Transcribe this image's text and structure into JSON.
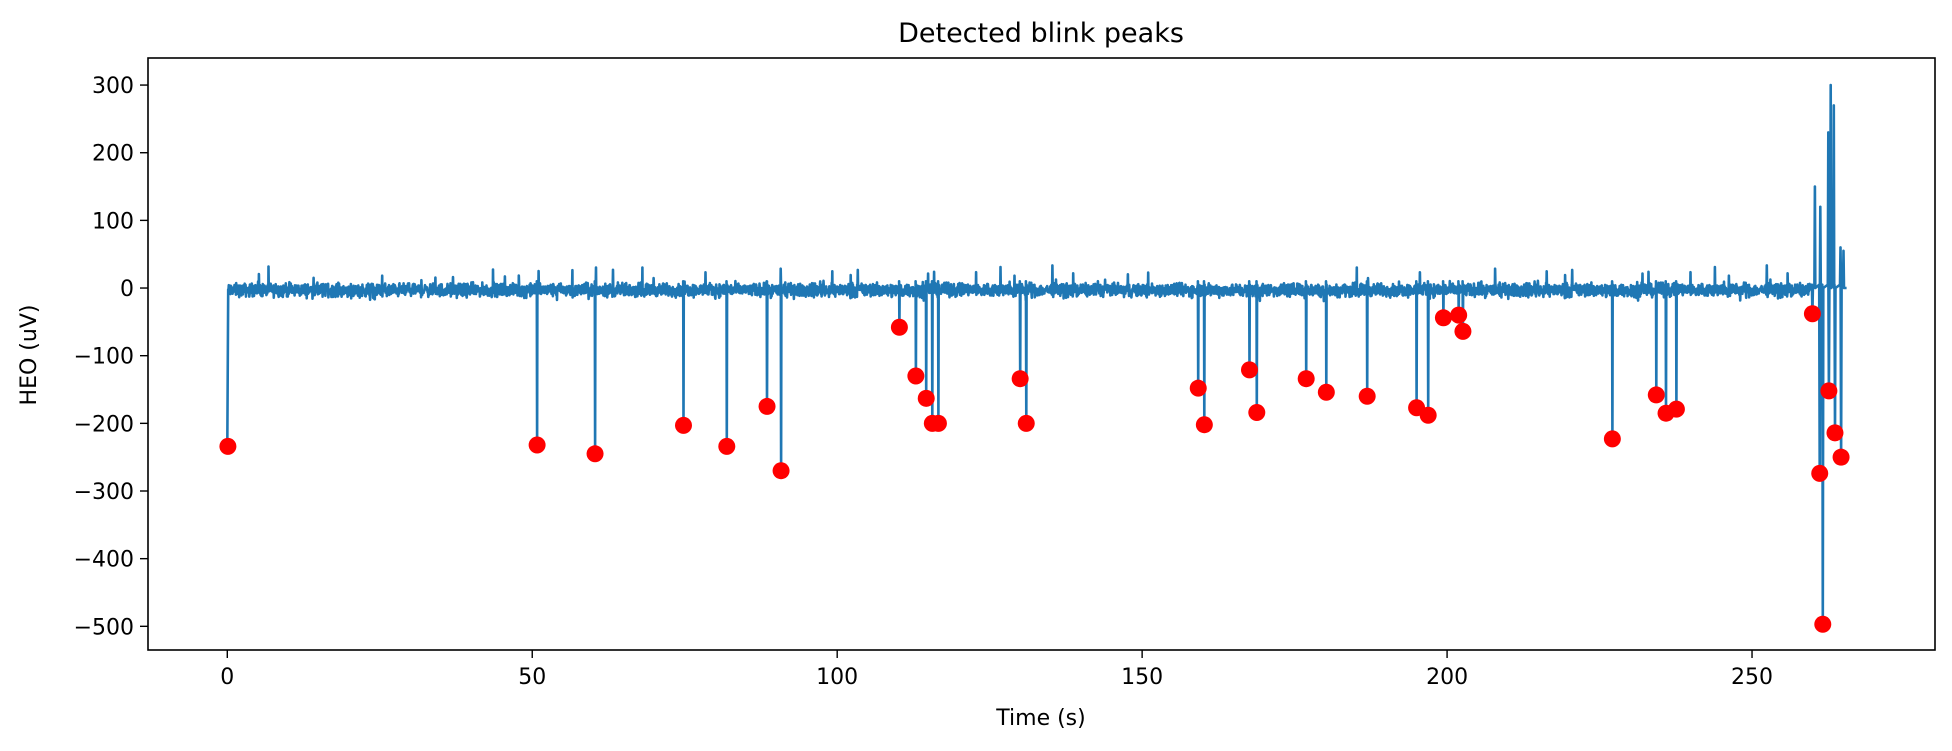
{
  "chart_data": {
    "type": "line",
    "title": "Detected blink peaks",
    "xlabel": "Time (s)",
    "ylabel": "HEO (uV)",
    "xlim": [
      -13,
      280
    ],
    "ylim": [
      -535,
      340
    ],
    "x_ticks": [
      0,
      50,
      100,
      150,
      200,
      250
    ],
    "x_tick_labels": [
      "0",
      "50",
      "100",
      "150",
      "200",
      "250"
    ],
    "y_ticks": [
      300,
      200,
      100,
      0,
      -100,
      -200,
      -300,
      -400,
      -500
    ],
    "y_tick_labels": [
      "300",
      "200",
      "100",
      "0",
      "−100",
      "−200",
      "−300",
      "−400",
      "−500"
    ],
    "grid": false,
    "series": [
      {
        "color": "#1f77b4",
        "baseline_noise_range": [
          -20,
          25
        ],
        "burst": {
          "start": 259.5,
          "end": 265.5,
          "spikes": [
            {
              "x": 260.3,
              "y": 150
            },
            {
              "x": 261.2,
              "y": 120
            },
            {
              "x": 262.5,
              "y": 230
            },
            {
              "x": 262.9,
              "y": 300
            },
            {
              "x": 263.4,
              "y": 270
            },
            {
              "x": 264.5,
              "y": 60
            },
            {
              "x": 265.0,
              "y": 55
            }
          ]
        }
      },
      {
        "color": "#ff0000",
        "marker": "circle",
        "points": [
          {
            "x": 0.1,
            "y": -234
          },
          {
            "x": 50.8,
            "y": -232
          },
          {
            "x": 60.3,
            "y": -245
          },
          {
            "x": 74.8,
            "y": -203
          },
          {
            "x": 81.9,
            "y": -234
          },
          {
            "x": 88.5,
            "y": -175
          },
          {
            "x": 90.8,
            "y": -270
          },
          {
            "x": 110.2,
            "y": -58
          },
          {
            "x": 112.9,
            "y": -130
          },
          {
            "x": 114.6,
            "y": -163
          },
          {
            "x": 115.6,
            "y": -200
          },
          {
            "x": 116.6,
            "y": -200
          },
          {
            "x": 130.0,
            "y": -134
          },
          {
            "x": 131.0,
            "y": -200
          },
          {
            "x": 159.2,
            "y": -148
          },
          {
            "x": 160.2,
            "y": -202
          },
          {
            "x": 167.6,
            "y": -121
          },
          {
            "x": 168.8,
            "y": -184
          },
          {
            "x": 176.9,
            "y": -134
          },
          {
            "x": 180.2,
            "y": -154
          },
          {
            "x": 186.9,
            "y": -160
          },
          {
            "x": 195.0,
            "y": -177
          },
          {
            "x": 196.9,
            "y": -188
          },
          {
            "x": 199.4,
            "y": -44
          },
          {
            "x": 201.9,
            "y": -40
          },
          {
            "x": 202.6,
            "y": -64
          },
          {
            "x": 227.1,
            "y": -223
          },
          {
            "x": 234.3,
            "y": -158
          },
          {
            "x": 235.9,
            "y": -185
          },
          {
            "x": 237.6,
            "y": -179
          },
          {
            "x": 259.9,
            "y": -38
          },
          {
            "x": 261.1,
            "y": -274
          },
          {
            "x": 261.6,
            "y": -497
          },
          {
            "x": 262.6,
            "y": -152
          },
          {
            "x": 263.6,
            "y": -214
          },
          {
            "x": 264.6,
            "y": -250
          }
        ]
      }
    ]
  }
}
